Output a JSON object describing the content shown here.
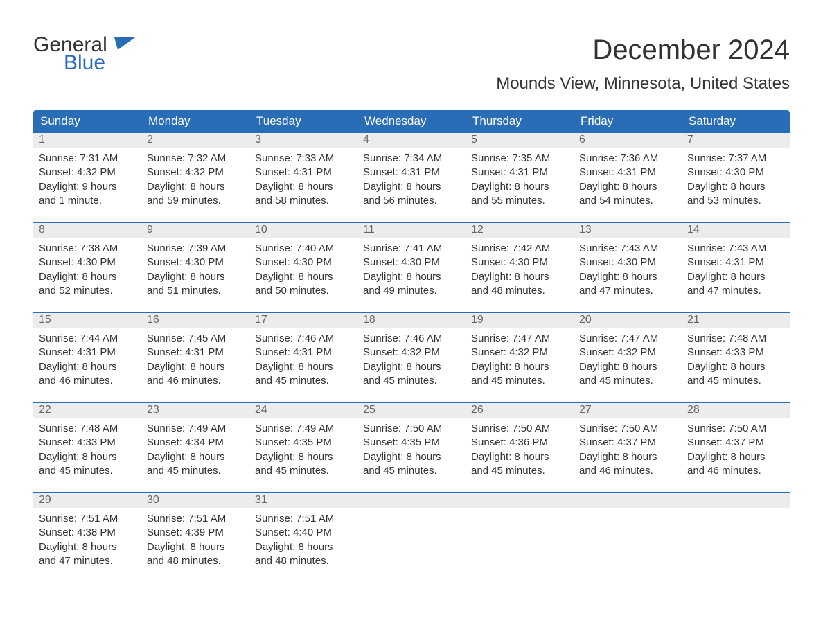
{
  "colors": {
    "header_bg": "#2a6db7",
    "header_text": "#ffffff",
    "daynum_bg": "#ececec",
    "daynum_text": "#666666",
    "body_text": "#333333",
    "rule": "#2a6db7",
    "logo_blue": "#2a6db7",
    "page_bg": "#ffffff"
  },
  "logo": {
    "part1": "General",
    "part2": "Blue"
  },
  "title": "December 2024",
  "location": "Mounds View, Minnesota, United States",
  "weekdays": [
    "Sunday",
    "Monday",
    "Tuesday",
    "Wednesday",
    "Thursday",
    "Friday",
    "Saturday"
  ],
  "weeks": [
    [
      {
        "n": "1",
        "sunrise": "Sunrise: 7:31 AM",
        "sunset": "Sunset: 4:32 PM",
        "day1": "Daylight: 9 hours",
        "day2": "and 1 minute."
      },
      {
        "n": "2",
        "sunrise": "Sunrise: 7:32 AM",
        "sunset": "Sunset: 4:32 PM",
        "day1": "Daylight: 8 hours",
        "day2": "and 59 minutes."
      },
      {
        "n": "3",
        "sunrise": "Sunrise: 7:33 AM",
        "sunset": "Sunset: 4:31 PM",
        "day1": "Daylight: 8 hours",
        "day2": "and 58 minutes."
      },
      {
        "n": "4",
        "sunrise": "Sunrise: 7:34 AM",
        "sunset": "Sunset: 4:31 PM",
        "day1": "Daylight: 8 hours",
        "day2": "and 56 minutes."
      },
      {
        "n": "5",
        "sunrise": "Sunrise: 7:35 AM",
        "sunset": "Sunset: 4:31 PM",
        "day1": "Daylight: 8 hours",
        "day2": "and 55 minutes."
      },
      {
        "n": "6",
        "sunrise": "Sunrise: 7:36 AM",
        "sunset": "Sunset: 4:31 PM",
        "day1": "Daylight: 8 hours",
        "day2": "and 54 minutes."
      },
      {
        "n": "7",
        "sunrise": "Sunrise: 7:37 AM",
        "sunset": "Sunset: 4:30 PM",
        "day1": "Daylight: 8 hours",
        "day2": "and 53 minutes."
      }
    ],
    [
      {
        "n": "8",
        "sunrise": "Sunrise: 7:38 AM",
        "sunset": "Sunset: 4:30 PM",
        "day1": "Daylight: 8 hours",
        "day2": "and 52 minutes."
      },
      {
        "n": "9",
        "sunrise": "Sunrise: 7:39 AM",
        "sunset": "Sunset: 4:30 PM",
        "day1": "Daylight: 8 hours",
        "day2": "and 51 minutes."
      },
      {
        "n": "10",
        "sunrise": "Sunrise: 7:40 AM",
        "sunset": "Sunset: 4:30 PM",
        "day1": "Daylight: 8 hours",
        "day2": "and 50 minutes."
      },
      {
        "n": "11",
        "sunrise": "Sunrise: 7:41 AM",
        "sunset": "Sunset: 4:30 PM",
        "day1": "Daylight: 8 hours",
        "day2": "and 49 minutes."
      },
      {
        "n": "12",
        "sunrise": "Sunrise: 7:42 AM",
        "sunset": "Sunset: 4:30 PM",
        "day1": "Daylight: 8 hours",
        "day2": "and 48 minutes."
      },
      {
        "n": "13",
        "sunrise": "Sunrise: 7:43 AM",
        "sunset": "Sunset: 4:30 PM",
        "day1": "Daylight: 8 hours",
        "day2": "and 47 minutes."
      },
      {
        "n": "14",
        "sunrise": "Sunrise: 7:43 AM",
        "sunset": "Sunset: 4:31 PM",
        "day1": "Daylight: 8 hours",
        "day2": "and 47 minutes."
      }
    ],
    [
      {
        "n": "15",
        "sunrise": "Sunrise: 7:44 AM",
        "sunset": "Sunset: 4:31 PM",
        "day1": "Daylight: 8 hours",
        "day2": "and 46 minutes."
      },
      {
        "n": "16",
        "sunrise": "Sunrise: 7:45 AM",
        "sunset": "Sunset: 4:31 PM",
        "day1": "Daylight: 8 hours",
        "day2": "and 46 minutes."
      },
      {
        "n": "17",
        "sunrise": "Sunrise: 7:46 AM",
        "sunset": "Sunset: 4:31 PM",
        "day1": "Daylight: 8 hours",
        "day2": "and 45 minutes."
      },
      {
        "n": "18",
        "sunrise": "Sunrise: 7:46 AM",
        "sunset": "Sunset: 4:32 PM",
        "day1": "Daylight: 8 hours",
        "day2": "and 45 minutes."
      },
      {
        "n": "19",
        "sunrise": "Sunrise: 7:47 AM",
        "sunset": "Sunset: 4:32 PM",
        "day1": "Daylight: 8 hours",
        "day2": "and 45 minutes."
      },
      {
        "n": "20",
        "sunrise": "Sunrise: 7:47 AM",
        "sunset": "Sunset: 4:32 PM",
        "day1": "Daylight: 8 hours",
        "day2": "and 45 minutes."
      },
      {
        "n": "21",
        "sunrise": "Sunrise: 7:48 AM",
        "sunset": "Sunset: 4:33 PM",
        "day1": "Daylight: 8 hours",
        "day2": "and 45 minutes."
      }
    ],
    [
      {
        "n": "22",
        "sunrise": "Sunrise: 7:48 AM",
        "sunset": "Sunset: 4:33 PM",
        "day1": "Daylight: 8 hours",
        "day2": "and 45 minutes."
      },
      {
        "n": "23",
        "sunrise": "Sunrise: 7:49 AM",
        "sunset": "Sunset: 4:34 PM",
        "day1": "Daylight: 8 hours",
        "day2": "and 45 minutes."
      },
      {
        "n": "24",
        "sunrise": "Sunrise: 7:49 AM",
        "sunset": "Sunset: 4:35 PM",
        "day1": "Daylight: 8 hours",
        "day2": "and 45 minutes."
      },
      {
        "n": "25",
        "sunrise": "Sunrise: 7:50 AM",
        "sunset": "Sunset: 4:35 PM",
        "day1": "Daylight: 8 hours",
        "day2": "and 45 minutes."
      },
      {
        "n": "26",
        "sunrise": "Sunrise: 7:50 AM",
        "sunset": "Sunset: 4:36 PM",
        "day1": "Daylight: 8 hours",
        "day2": "and 45 minutes."
      },
      {
        "n": "27",
        "sunrise": "Sunrise: 7:50 AM",
        "sunset": "Sunset: 4:37 PM",
        "day1": "Daylight: 8 hours",
        "day2": "and 46 minutes."
      },
      {
        "n": "28",
        "sunrise": "Sunrise: 7:50 AM",
        "sunset": "Sunset: 4:37 PM",
        "day1": "Daylight: 8 hours",
        "day2": "and 46 minutes."
      }
    ],
    [
      {
        "n": "29",
        "sunrise": "Sunrise: 7:51 AM",
        "sunset": "Sunset: 4:38 PM",
        "day1": "Daylight: 8 hours",
        "day2": "and 47 minutes."
      },
      {
        "n": "30",
        "sunrise": "Sunrise: 7:51 AM",
        "sunset": "Sunset: 4:39 PM",
        "day1": "Daylight: 8 hours",
        "day2": "and 48 minutes."
      },
      {
        "n": "31",
        "sunrise": "Sunrise: 7:51 AM",
        "sunset": "Sunset: 4:40 PM",
        "day1": "Daylight: 8 hours",
        "day2": "and 48 minutes."
      },
      null,
      null,
      null,
      null
    ]
  ]
}
